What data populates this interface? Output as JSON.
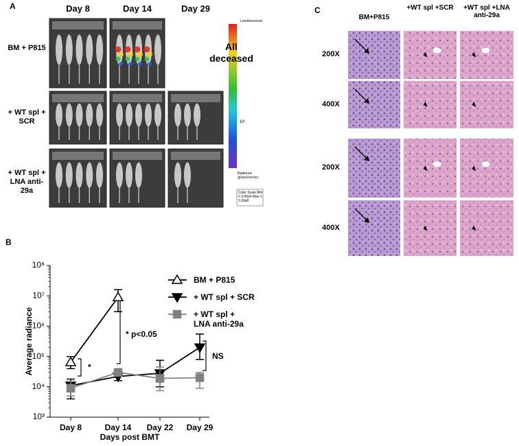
{
  "panel_a": {
    "label": "A",
    "columns": [
      "Day 8",
      "Day 14",
      "Day 29"
    ],
    "rows": [
      "BM + P815",
      "+ WT spl + SCR",
      "+ WT spl + LNA anti-29a"
    ],
    "note": "All deceased",
    "colorbar": {
      "title": "Luminescence",
      "tick": "10⁷",
      "unit": "Radiance (p/sec/cm²/sr)",
      "scale": "Color Scale Min = 3.00e6 Max = 1.00e8"
    }
  },
  "chart_data": {
    "type": "line",
    "panel_label": "B",
    "y_label": "Average radiance",
    "x_label": "Days post BMT",
    "categories": [
      "Day 8",
      "Day 14",
      "Day 22",
      "Day 29"
    ],
    "log_y": true,
    "ylim": [
      1000,
      100000000
    ],
    "yticks": [
      {
        "value": 1000,
        "label": "10³"
      },
      {
        "value": 10000,
        "label": "10⁴"
      },
      {
        "value": 100000,
        "label": "10⁵"
      },
      {
        "value": 1000000,
        "label": "10⁶"
      },
      {
        "value": 10000000,
        "label": "10⁷"
      },
      {
        "value": 100000000,
        "label": "10⁸"
      }
    ],
    "series": [
      {
        "name": "BM + P815",
        "color": "#000000",
        "marker": "triangle-open",
        "values": [
          65000,
          9000000,
          null,
          null
        ],
        "error_low": [
          40000,
          3000000,
          null,
          null
        ],
        "error_high": [
          100000,
          16000000,
          null,
          null
        ]
      },
      {
        "name": "+ WT spl + SCR",
        "color": "#000000",
        "marker": "triangle-down",
        "values": [
          11000,
          22000,
          28000,
          200000
        ],
        "error_low": [
          4000,
          16000,
          10000,
          80000
        ],
        "error_high": [
          18000,
          28000,
          75000,
          550000
        ]
      },
      {
        "name": "+ WT spl + LNA anti-29a",
        "color": "#808080",
        "marker": "square",
        "values": [
          9000,
          30000,
          19000,
          20000
        ],
        "error_low": [
          5000,
          25000,
          7500,
          9000
        ],
        "error_high": [
          15000,
          40000,
          45000,
          30000
        ]
      }
    ],
    "annotations": [
      "*",
      "* p<0.05",
      "NS"
    ]
  },
  "panel_c": {
    "label": "C",
    "columns": [
      "BM+P815",
      "+WT spl +SCR",
      "+WT spl +LNA anti-29a"
    ],
    "rows": [
      "200X",
      "400X",
      "200X",
      "400X"
    ]
  }
}
